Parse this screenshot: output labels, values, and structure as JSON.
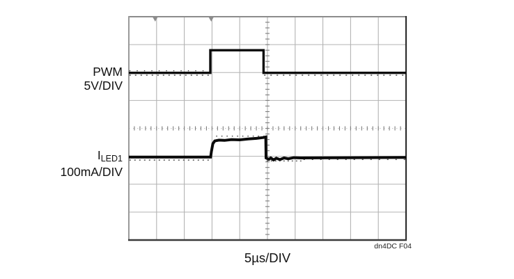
{
  "figure": {
    "left_labels": [
      {
        "line1": "PWM",
        "line2": "5V/DIV"
      },
      {
        "line1_base": "I",
        "line1_sub": "LED1",
        "line2": "100mA/DIV"
      }
    ],
    "timebase_label": "5µs/DIV",
    "figure_id": "dn4DC F04"
  },
  "chart_data": {
    "type": "line",
    "xlabel": "5µs/DIV",
    "x_divisions": 10,
    "y_divisions": 8,
    "time_per_div": "5µs",
    "total_time_span_us": 50,
    "grid": {
      "minor_ticks_per_div": 5,
      "center_axes_ticked": true,
      "gridlines": "on"
    },
    "top_marker_positions_div": [
      0.95,
      2.97
    ],
    "annotation": "dn4DC F04",
    "series": [
      {
        "name": "PWM",
        "scale": "5V/DIV",
        "description": "PWM gate signal: low, single high pulse of about 9.6µs (≈2 divisions), then low",
        "pulse_start_us": 14.7,
        "pulse_end_us": 24.3,
        "displayed_amplitude_div": 0.81,
        "stroke_width": 3.4,
        "points_div": [
          [
            0,
            2.01
          ],
          [
            2.94,
            2.01
          ],
          [
            2.94,
            1.2
          ],
          [
            4.86,
            1.2
          ],
          [
            4.86,
            2.01
          ],
          [
            10,
            2.01
          ]
        ]
      },
      {
        "name": "ILED1",
        "scale": "100mA/DIV",
        "description": "LED current: steps up ≈70mA during the PWM pulse with rounded rise and slight ramp, small undershoot/ringing after turn-off",
        "step_amplitude_div": 0.7,
        "step_amplitude_approx_ma": 70,
        "stroke_width": 4.0,
        "points_div": [
          [
            0,
            5.03
          ],
          [
            2.95,
            5.03
          ],
          [
            2.98,
            4.82
          ],
          [
            3.03,
            4.55
          ],
          [
            3.1,
            4.45
          ],
          [
            3.25,
            4.42
          ],
          [
            3.45,
            4.43
          ],
          [
            3.7,
            4.4
          ],
          [
            4.0,
            4.41
          ],
          [
            4.3,
            4.38
          ],
          [
            4.6,
            4.36
          ],
          [
            4.85,
            4.33
          ],
          [
            4.94,
            4.31
          ],
          [
            4.95,
            5.06
          ],
          [
            5.05,
            5.11
          ],
          [
            5.12,
            5.06
          ],
          [
            5.22,
            5.13
          ],
          [
            5.32,
            5.07
          ],
          [
            5.45,
            5.12
          ],
          [
            5.6,
            5.06
          ],
          [
            5.75,
            5.09
          ],
          [
            5.95,
            5.05
          ],
          [
            6.2,
            5.06
          ],
          [
            10,
            5.04
          ]
        ]
      }
    ]
  }
}
